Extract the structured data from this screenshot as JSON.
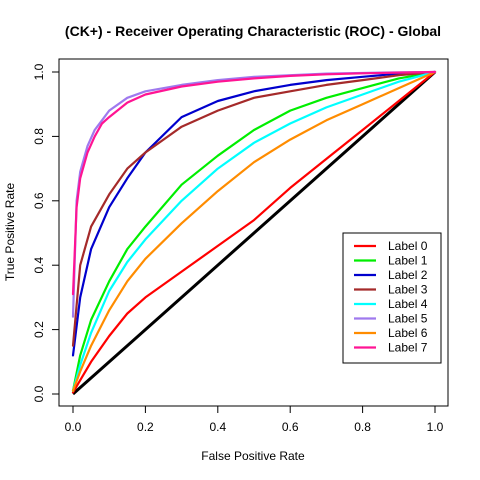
{
  "chart_data": {
    "type": "line",
    "title": "(CK+) - Receiver Operating Characteristic (ROC) - Global",
    "xlabel": "False Positive Rate",
    "ylabel": "True Positive Rate",
    "xlim": [
      0,
      1
    ],
    "ylim": [
      0,
      1
    ],
    "xticks": [
      "0.0",
      "0.2",
      "0.4",
      "0.6",
      "0.8",
      "1.0"
    ],
    "yticks": [
      "0.0",
      "0.2",
      "0.4",
      "0.6",
      "0.8",
      "1.0"
    ],
    "grid": false,
    "legend_position": "bottom-right",
    "diagonal": {
      "color": "#000000",
      "x": [
        0,
        1
      ],
      "y": [
        0,
        1
      ]
    },
    "series": [
      {
        "name": "Label 0",
        "color": "#ff0000",
        "x": [
          0,
          0.05,
          0.1,
          0.15,
          0.2,
          0.3,
          0.4,
          0.5,
          0.6,
          0.7,
          0.8,
          0.9,
          1.0
        ],
        "y": [
          0.005,
          0.1,
          0.18,
          0.25,
          0.3,
          0.38,
          0.46,
          0.54,
          0.64,
          0.73,
          0.82,
          0.91,
          1.0
        ]
      },
      {
        "name": "Label 1",
        "color": "#00ee00",
        "x": [
          0,
          0.02,
          0.05,
          0.1,
          0.15,
          0.2,
          0.3,
          0.4,
          0.5,
          0.6,
          0.7,
          0.8,
          0.9,
          1.0
        ],
        "y": [
          0.01,
          0.12,
          0.23,
          0.35,
          0.45,
          0.52,
          0.65,
          0.74,
          0.82,
          0.88,
          0.92,
          0.95,
          0.98,
          1.0
        ]
      },
      {
        "name": "Label 2",
        "color": "#0000cd",
        "x": [
          0,
          0.02,
          0.05,
          0.1,
          0.15,
          0.2,
          0.3,
          0.4,
          0.5,
          0.6,
          0.7,
          0.8,
          0.9,
          1.0
        ],
        "y": [
          0.12,
          0.3,
          0.45,
          0.58,
          0.67,
          0.75,
          0.86,
          0.91,
          0.94,
          0.96,
          0.975,
          0.985,
          0.995,
          1.0
        ]
      },
      {
        "name": "Label 3",
        "color": "#a52a2a",
        "x": [
          0,
          0.02,
          0.05,
          0.1,
          0.15,
          0.2,
          0.3,
          0.4,
          0.5,
          0.6,
          0.7,
          0.8,
          0.9,
          1.0
        ],
        "y": [
          0.15,
          0.4,
          0.52,
          0.62,
          0.7,
          0.75,
          0.83,
          0.88,
          0.92,
          0.94,
          0.96,
          0.975,
          0.99,
          1.0
        ]
      },
      {
        "name": "Label 4",
        "color": "#00ffff",
        "x": [
          0,
          0.02,
          0.05,
          0.1,
          0.15,
          0.2,
          0.3,
          0.4,
          0.5,
          0.6,
          0.7,
          0.8,
          0.9,
          1.0
        ],
        "y": [
          0.01,
          0.09,
          0.19,
          0.32,
          0.41,
          0.48,
          0.6,
          0.7,
          0.78,
          0.84,
          0.89,
          0.93,
          0.97,
          1.0
        ]
      },
      {
        "name": "Label 5",
        "color": "#9f79ee",
        "x": [
          0,
          0.01,
          0.02,
          0.04,
          0.06,
          0.08,
          0.1,
          0.15,
          0.2,
          0.3,
          0.4,
          0.5,
          0.6,
          0.7,
          0.8,
          0.9,
          1.0
        ],
        "y": [
          0.24,
          0.6,
          0.69,
          0.77,
          0.82,
          0.85,
          0.88,
          0.92,
          0.94,
          0.96,
          0.975,
          0.985,
          0.99,
          0.995,
          0.997,
          0.999,
          1.0
        ]
      },
      {
        "name": "Label 6",
        "color": "#ff8c00",
        "x": [
          0,
          0.02,
          0.05,
          0.1,
          0.15,
          0.2,
          0.3,
          0.4,
          0.5,
          0.6,
          0.7,
          0.8,
          0.9,
          1.0
        ],
        "y": [
          0.01,
          0.07,
          0.15,
          0.26,
          0.35,
          0.42,
          0.53,
          0.63,
          0.72,
          0.79,
          0.85,
          0.9,
          0.95,
          1.0
        ]
      },
      {
        "name": "Label 7",
        "color": "#ff1493",
        "x": [
          0,
          0.01,
          0.02,
          0.04,
          0.06,
          0.08,
          0.1,
          0.15,
          0.2,
          0.3,
          0.4,
          0.5,
          0.6,
          0.7,
          0.8,
          0.9,
          1.0
        ],
        "y": [
          0.31,
          0.58,
          0.67,
          0.75,
          0.8,
          0.84,
          0.86,
          0.905,
          0.93,
          0.955,
          0.97,
          0.98,
          0.988,
          0.993,
          0.996,
          0.998,
          1.0
        ]
      }
    ]
  }
}
